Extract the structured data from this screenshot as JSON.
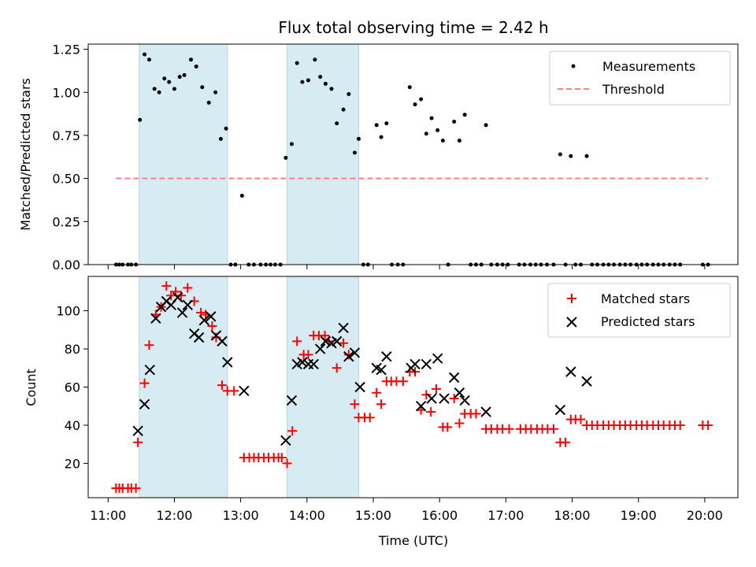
{
  "title": "Flux total observing time = 2.42 h",
  "top": {
    "ylabel": "Matched/Predicted stars",
    "ylim": [
      0,
      1.28
    ],
    "yticks": [
      "0.00",
      "0.25",
      "0.50",
      "0.75",
      "1.00",
      "1.25"
    ],
    "legend": {
      "measurements": "Measurements",
      "threshold": "Threshold"
    }
  },
  "bottom": {
    "ylabel": "Count",
    "xlabel": "Time (UTC)",
    "ylim": [
      2,
      118
    ],
    "yticks": [
      "20",
      "40",
      "60",
      "80",
      "100"
    ],
    "legend": {
      "matched": "Matched stars",
      "predicted": "Predicted stars"
    }
  },
  "xaxis": {
    "range_hours": [
      10.7,
      20.5
    ],
    "tick_labels": [
      "11:00",
      "12:00",
      "13:00",
      "14:00",
      "15:00",
      "16:00",
      "17:00",
      "18:00",
      "19:00",
      "20:00"
    ]
  },
  "colors": {
    "measurements": "#000000",
    "threshold": "#ff7f7f",
    "matched": "#ff0000",
    "predicted": "#000000",
    "shade": "#add8e6"
  },
  "chart_data": [
    {
      "type": "scatter",
      "panel": "ratio",
      "x_unit": "hours UTC",
      "ylabel": "Matched/Predicted stars",
      "shaded_intervals": [
        [
          11.47,
          12.8
        ],
        [
          13.7,
          14.78
        ]
      ],
      "threshold": {
        "value": 0.5,
        "x_range": [
          11.12,
          20.05
        ],
        "name": "Threshold"
      },
      "series": [
        {
          "name": "Measurements",
          "points": [
            [
              11.12,
              0
            ],
            [
              11.17,
              0
            ],
            [
              11.22,
              0
            ],
            [
              11.3,
              0
            ],
            [
              11.35,
              0
            ],
            [
              11.42,
              0
            ],
            [
              11.48,
              0.84
            ],
            [
              11.55,
              1.22
            ],
            [
              11.62,
              1.19
            ],
            [
              11.7,
              1.02
            ],
            [
              11.77,
              1.0
            ],
            [
              11.85,
              1.08
            ],
            [
              11.92,
              1.06
            ],
            [
              12.0,
              1.02
            ],
            [
              12.08,
              1.09
            ],
            [
              12.15,
              1.1
            ],
            [
              12.25,
              1.19
            ],
            [
              12.33,
              1.15
            ],
            [
              12.42,
              1.03
            ],
            [
              12.52,
              0.94
            ],
            [
              12.62,
              1.0
            ],
            [
              12.7,
              0.73
            ],
            [
              12.78,
              0.79
            ],
            [
              12.85,
              0
            ],
            [
              12.92,
              0
            ],
            [
              13.02,
              0.4
            ],
            [
              13.12,
              0
            ],
            [
              13.2,
              0
            ],
            [
              13.3,
              0
            ],
            [
              13.38,
              0
            ],
            [
              13.45,
              0
            ],
            [
              13.52,
              0
            ],
            [
              13.6,
              0
            ],
            [
              13.68,
              0.62
            ],
            [
              13.77,
              0.7
            ],
            [
              13.85,
              1.17
            ],
            [
              13.93,
              1.06
            ],
            [
              14.02,
              1.07
            ],
            [
              14.12,
              1.19
            ],
            [
              14.2,
              1.09
            ],
            [
              14.28,
              1.05
            ],
            [
              14.37,
              1.02
            ],
            [
              14.45,
              0.82
            ],
            [
              14.55,
              0.9
            ],
            [
              14.63,
              0.99
            ],
            [
              14.72,
              0.65
            ],
            [
              14.78,
              0.73
            ],
            [
              14.85,
              0
            ],
            [
              14.92,
              0
            ],
            [
              15.05,
              0.81
            ],
            [
              15.12,
              0.74
            ],
            [
              15.2,
              0.82
            ],
            [
              15.28,
              0
            ],
            [
              15.37,
              0
            ],
            [
              15.45,
              0
            ],
            [
              15.55,
              1.03
            ],
            [
              15.63,
              0.93
            ],
            [
              15.72,
              0.96
            ],
            [
              15.8,
              0.76
            ],
            [
              15.88,
              0.85
            ],
            [
              15.97,
              0.78
            ],
            [
              16.05,
              0.72
            ],
            [
              16.13,
              0
            ],
            [
              16.22,
              0.83
            ],
            [
              16.3,
              0.72
            ],
            [
              16.38,
              0.87
            ],
            [
              16.47,
              0
            ],
            [
              16.55,
              0
            ],
            [
              16.63,
              0
            ],
            [
              16.7,
              0.81
            ],
            [
              16.78,
              0
            ],
            [
              16.87,
              0
            ],
            [
              16.95,
              0
            ],
            [
              17.03,
              0
            ],
            [
              17.2,
              0
            ],
            [
              17.28,
              0
            ],
            [
              17.37,
              0
            ],
            [
              17.45,
              0
            ],
            [
              17.53,
              0
            ],
            [
              17.62,
              0
            ],
            [
              17.72,
              0
            ],
            [
              17.82,
              0.64
            ],
            [
              17.9,
              0
            ],
            [
              17.98,
              0.63
            ],
            [
              18.05,
              0
            ],
            [
              18.13,
              0
            ],
            [
              18.22,
              0.63
            ],
            [
              18.3,
              0
            ],
            [
              18.38,
              0
            ],
            [
              18.47,
              0
            ],
            [
              18.55,
              0
            ],
            [
              18.63,
              0
            ],
            [
              18.72,
              0
            ],
            [
              18.8,
              0
            ],
            [
              18.88,
              0
            ],
            [
              18.97,
              0
            ],
            [
              19.05,
              0
            ],
            [
              19.13,
              0
            ],
            [
              19.22,
              0
            ],
            [
              19.3,
              0
            ],
            [
              19.38,
              0
            ],
            [
              19.47,
              0
            ],
            [
              19.55,
              0
            ],
            [
              19.63,
              0
            ],
            [
              19.97,
              0
            ],
            [
              20.05,
              0
            ]
          ]
        }
      ]
    },
    {
      "type": "scatter",
      "panel": "counts",
      "x_unit": "hours UTC",
      "xlabel": "Time (UTC)",
      "ylabel": "Count",
      "shaded_intervals": [
        [
          11.47,
          12.8
        ],
        [
          13.7,
          14.78
        ]
      ],
      "series": [
        {
          "name": "Matched stars",
          "marker": "plus",
          "points": [
            [
              11.12,
              7
            ],
            [
              11.17,
              7
            ],
            [
              11.22,
              7
            ],
            [
              11.3,
              7
            ],
            [
              11.35,
              7
            ],
            [
              11.42,
              7
            ],
            [
              11.45,
              31
            ],
            [
              11.55,
              62
            ],
            [
              11.62,
              82
            ],
            [
              11.72,
              98
            ],
            [
              11.8,
              102
            ],
            [
              11.88,
              113
            ],
            [
              11.95,
              108
            ],
            [
              12.02,
              110
            ],
            [
              12.1,
              108
            ],
            [
              12.2,
              112
            ],
            [
              12.3,
              105
            ],
            [
              12.4,
              99
            ],
            [
              12.47,
              98
            ],
            [
              12.57,
              92
            ],
            [
              12.63,
              86
            ],
            [
              12.72,
              61
            ],
            [
              12.8,
              58
            ],
            [
              12.9,
              58
            ],
            [
              13.05,
              23
            ],
            [
              13.13,
              23
            ],
            [
              13.2,
              23
            ],
            [
              13.27,
              23
            ],
            [
              13.35,
              23
            ],
            [
              13.42,
              23
            ],
            [
              13.5,
              23
            ],
            [
              13.57,
              23
            ],
            [
              13.62,
              23
            ],
            [
              13.7,
              20
            ],
            [
              13.78,
              37
            ],
            [
              13.85,
              84
            ],
            [
              13.95,
              77
            ],
            [
              14.02,
              77
            ],
            [
              14.1,
              87
            ],
            [
              14.18,
              87
            ],
            [
              14.27,
              87
            ],
            [
              14.33,
              84
            ],
            [
              14.45,
              70
            ],
            [
              14.55,
              83
            ],
            [
              14.63,
              77
            ],
            [
              14.72,
              51
            ],
            [
              14.78,
              44
            ],
            [
              14.87,
              44
            ],
            [
              14.95,
              44
            ],
            [
              15.05,
              57
            ],
            [
              15.12,
              51
            ],
            [
              15.2,
              63
            ],
            [
              15.27,
              63
            ],
            [
              15.35,
              63
            ],
            [
              15.45,
              63
            ],
            [
              15.55,
              68
            ],
            [
              15.63,
              68
            ],
            [
              15.72,
              48
            ],
            [
              15.8,
              56
            ],
            [
              15.87,
              47
            ],
            [
              15.95,
              59
            ],
            [
              16.05,
              39
            ],
            [
              16.12,
              39
            ],
            [
              16.22,
              54
            ],
            [
              16.3,
              41
            ],
            [
              16.38,
              46
            ],
            [
              16.47,
              46
            ],
            [
              16.55,
              46
            ],
            [
              16.7,
              38
            ],
            [
              16.78,
              38
            ],
            [
              16.87,
              38
            ],
            [
              16.95,
              38
            ],
            [
              17.05,
              38
            ],
            [
              17.22,
              38
            ],
            [
              17.3,
              38
            ],
            [
              17.38,
              38
            ],
            [
              17.47,
              38
            ],
            [
              17.55,
              38
            ],
            [
              17.63,
              38
            ],
            [
              17.72,
              38
            ],
            [
              17.82,
              31
            ],
            [
              17.9,
              31
            ],
            [
              17.98,
              43
            ],
            [
              18.05,
              43
            ],
            [
              18.13,
              43
            ],
            [
              18.22,
              40
            ],
            [
              18.3,
              40
            ],
            [
              18.38,
              40
            ],
            [
              18.47,
              40
            ],
            [
              18.55,
              40
            ],
            [
              18.63,
              40
            ],
            [
              18.72,
              40
            ],
            [
              18.8,
              40
            ],
            [
              18.88,
              40
            ],
            [
              18.97,
              40
            ],
            [
              19.05,
              40
            ],
            [
              19.13,
              40
            ],
            [
              19.22,
              40
            ],
            [
              19.3,
              40
            ],
            [
              19.38,
              40
            ],
            [
              19.47,
              40
            ],
            [
              19.55,
              40
            ],
            [
              19.63,
              40
            ],
            [
              19.97,
              40
            ],
            [
              20.05,
              40
            ]
          ]
        },
        {
          "name": "Predicted stars",
          "marker": "x",
          "points": [
            [
              11.45,
              37
            ],
            [
              11.55,
              51
            ],
            [
              11.63,
              69
            ],
            [
              11.72,
              96
            ],
            [
              11.8,
              102
            ],
            [
              11.88,
              105
            ],
            [
              11.95,
              103
            ],
            [
              12.05,
              107
            ],
            [
              12.12,
              99
            ],
            [
              12.2,
              103
            ],
            [
              12.3,
              88
            ],
            [
              12.37,
              86
            ],
            [
              12.45,
              95
            ],
            [
              12.55,
              97
            ],
            [
              12.63,
              87
            ],
            [
              12.72,
              84
            ],
            [
              12.8,
              73
            ],
            [
              13.05,
              58
            ],
            [
              13.68,
              32
            ],
            [
              13.77,
              53
            ],
            [
              13.85,
              72
            ],
            [
              13.93,
              73
            ],
            [
              14.02,
              72
            ],
            [
              14.1,
              72
            ],
            [
              14.2,
              80
            ],
            [
              14.28,
              84
            ],
            [
              14.37,
              83
            ],
            [
              14.45,
              84
            ],
            [
              14.55,
              91
            ],
            [
              14.63,
              76
            ],
            [
              14.72,
              78
            ],
            [
              14.8,
              60
            ],
            [
              15.05,
              70
            ],
            [
              15.12,
              69
            ],
            [
              15.2,
              76
            ],
            [
              15.57,
              70
            ],
            [
              15.63,
              72
            ],
            [
              15.72,
              50
            ],
            [
              15.8,
              72
            ],
            [
              15.88,
              54
            ],
            [
              15.97,
              75
            ],
            [
              16.07,
              54
            ],
            [
              16.22,
              65
            ],
            [
              16.3,
              57
            ],
            [
              16.38,
              53
            ],
            [
              16.7,
              47
            ],
            [
              17.82,
              48
            ],
            [
              17.98,
              68
            ],
            [
              18.22,
              63
            ]
          ]
        }
      ]
    }
  ]
}
